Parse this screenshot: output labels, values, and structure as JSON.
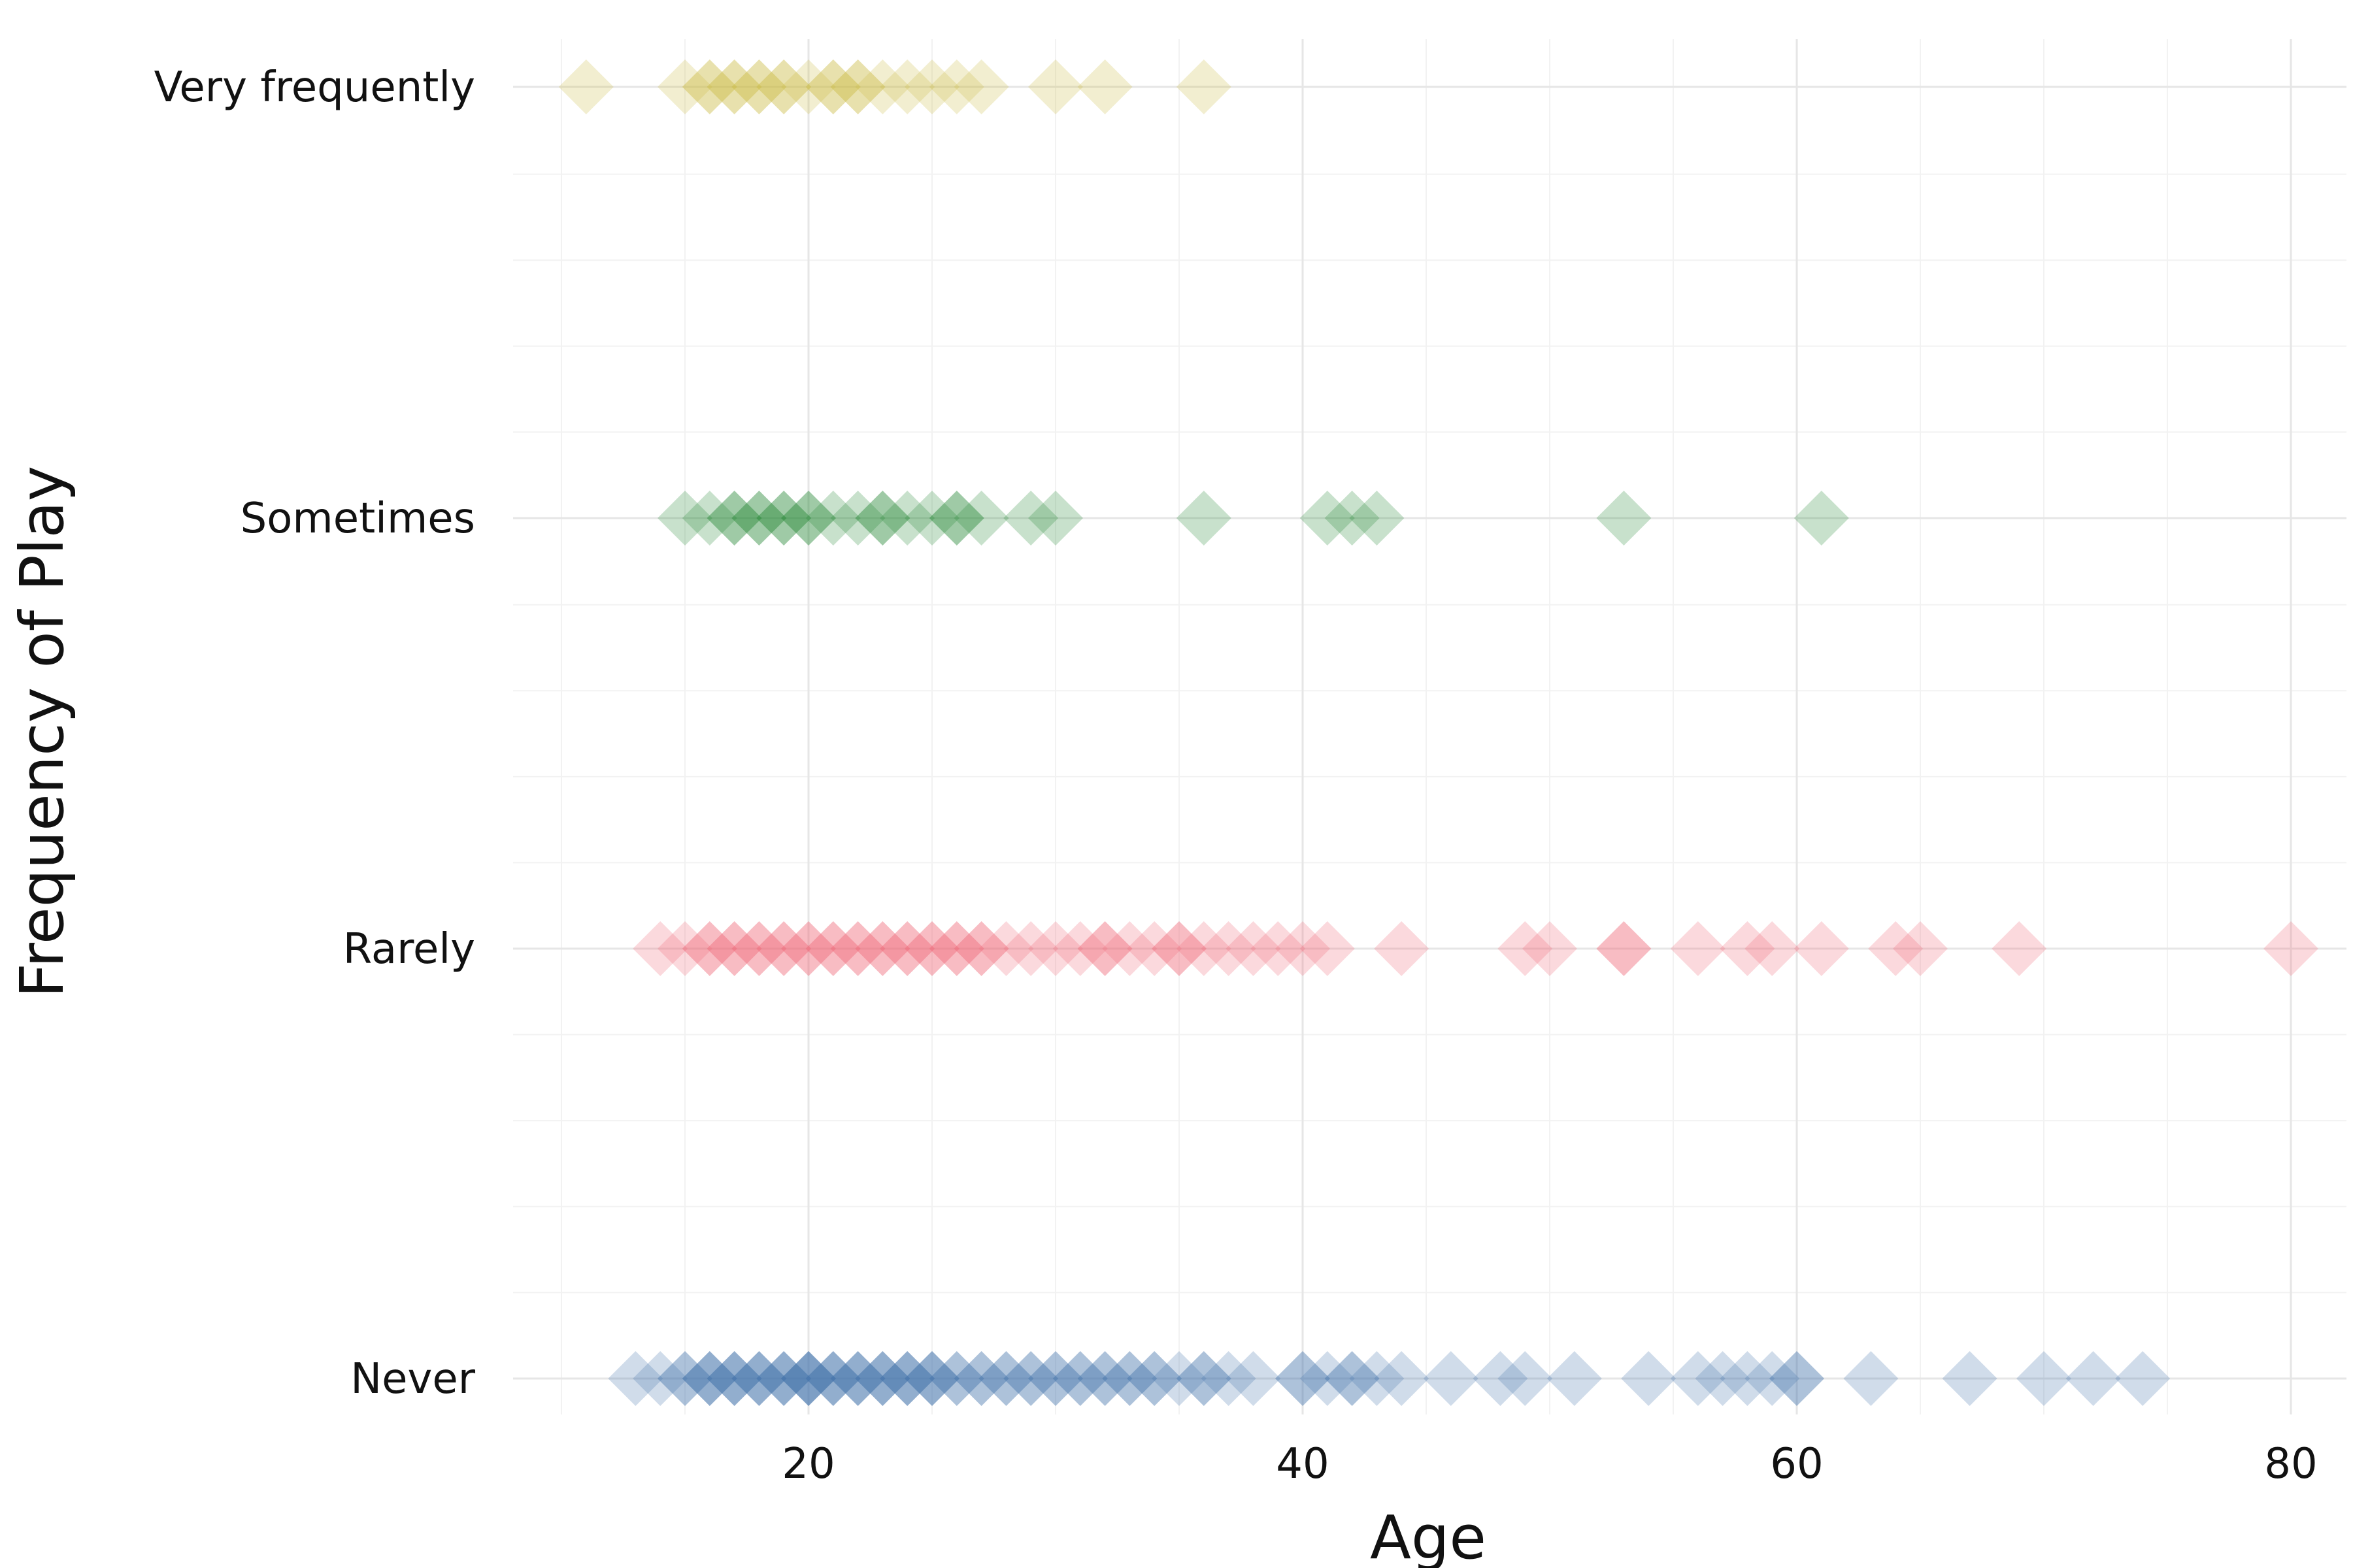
{
  "chart_data": {
    "type": "scatter",
    "title": "",
    "xlabel": "Age",
    "ylabel": "Frequency of Play",
    "xlim": [
      8.5,
      82
    ],
    "x_ticks": [
      20,
      40,
      60,
      80
    ],
    "categories": [
      "Never",
      "Rarely",
      "Sometimes",
      "Very frequently"
    ],
    "grid": true,
    "marker": "diamond",
    "series": [
      {
        "name": "Never",
        "color": "#4472aa",
        "x": [
          13,
          14,
          15,
          15,
          16,
          16,
          16,
          17,
          17,
          17,
          18,
          18,
          18,
          19,
          19,
          19,
          20,
          20,
          20,
          20,
          21,
          21,
          21,
          22,
          22,
          22,
          23,
          23,
          23,
          24,
          24,
          24,
          25,
          25,
          25,
          26,
          26,
          27,
          27,
          28,
          28,
          29,
          29,
          30,
          30,
          31,
          31,
          32,
          32,
          33,
          33,
          34,
          34,
          35,
          36,
          36,
          37,
          38,
          40,
          40,
          41,
          42,
          42,
          43,
          44,
          46,
          48,
          49,
          51,
          54,
          56,
          57,
          58,
          59,
          60,
          60,
          63,
          67,
          70,
          72,
          74
        ]
      },
      {
        "name": "Rarely",
        "color": "#ee6677",
        "x": [
          14,
          15,
          16,
          16,
          17,
          17,
          18,
          18,
          19,
          19,
          20,
          20,
          21,
          21,
          22,
          22,
          23,
          23,
          24,
          24,
          25,
          25,
          26,
          26,
          27,
          27,
          28,
          29,
          30,
          31,
          32,
          32,
          33,
          34,
          35,
          35,
          36,
          37,
          38,
          39,
          40,
          41,
          44,
          49,
          50,
          53,
          53,
          56,
          58,
          59,
          61,
          64,
          65,
          69,
          80
        ]
      },
      {
        "name": "Sometimes",
        "color": "#228833",
        "x": [
          15,
          16,
          17,
          17,
          18,
          18,
          19,
          19,
          20,
          20,
          21,
          22,
          23,
          23,
          24,
          25,
          26,
          26,
          27,
          29,
          30,
          36,
          41,
          42,
          43,
          53,
          61
        ]
      },
      {
        "name": "Very frequently",
        "color": "#ccbb44",
        "x": [
          11,
          15,
          16,
          16,
          17,
          17,
          18,
          18,
          19,
          19,
          20,
          21,
          21,
          22,
          22,
          23,
          24,
          25,
          26,
          27,
          30,
          32,
          36
        ]
      }
    ]
  }
}
